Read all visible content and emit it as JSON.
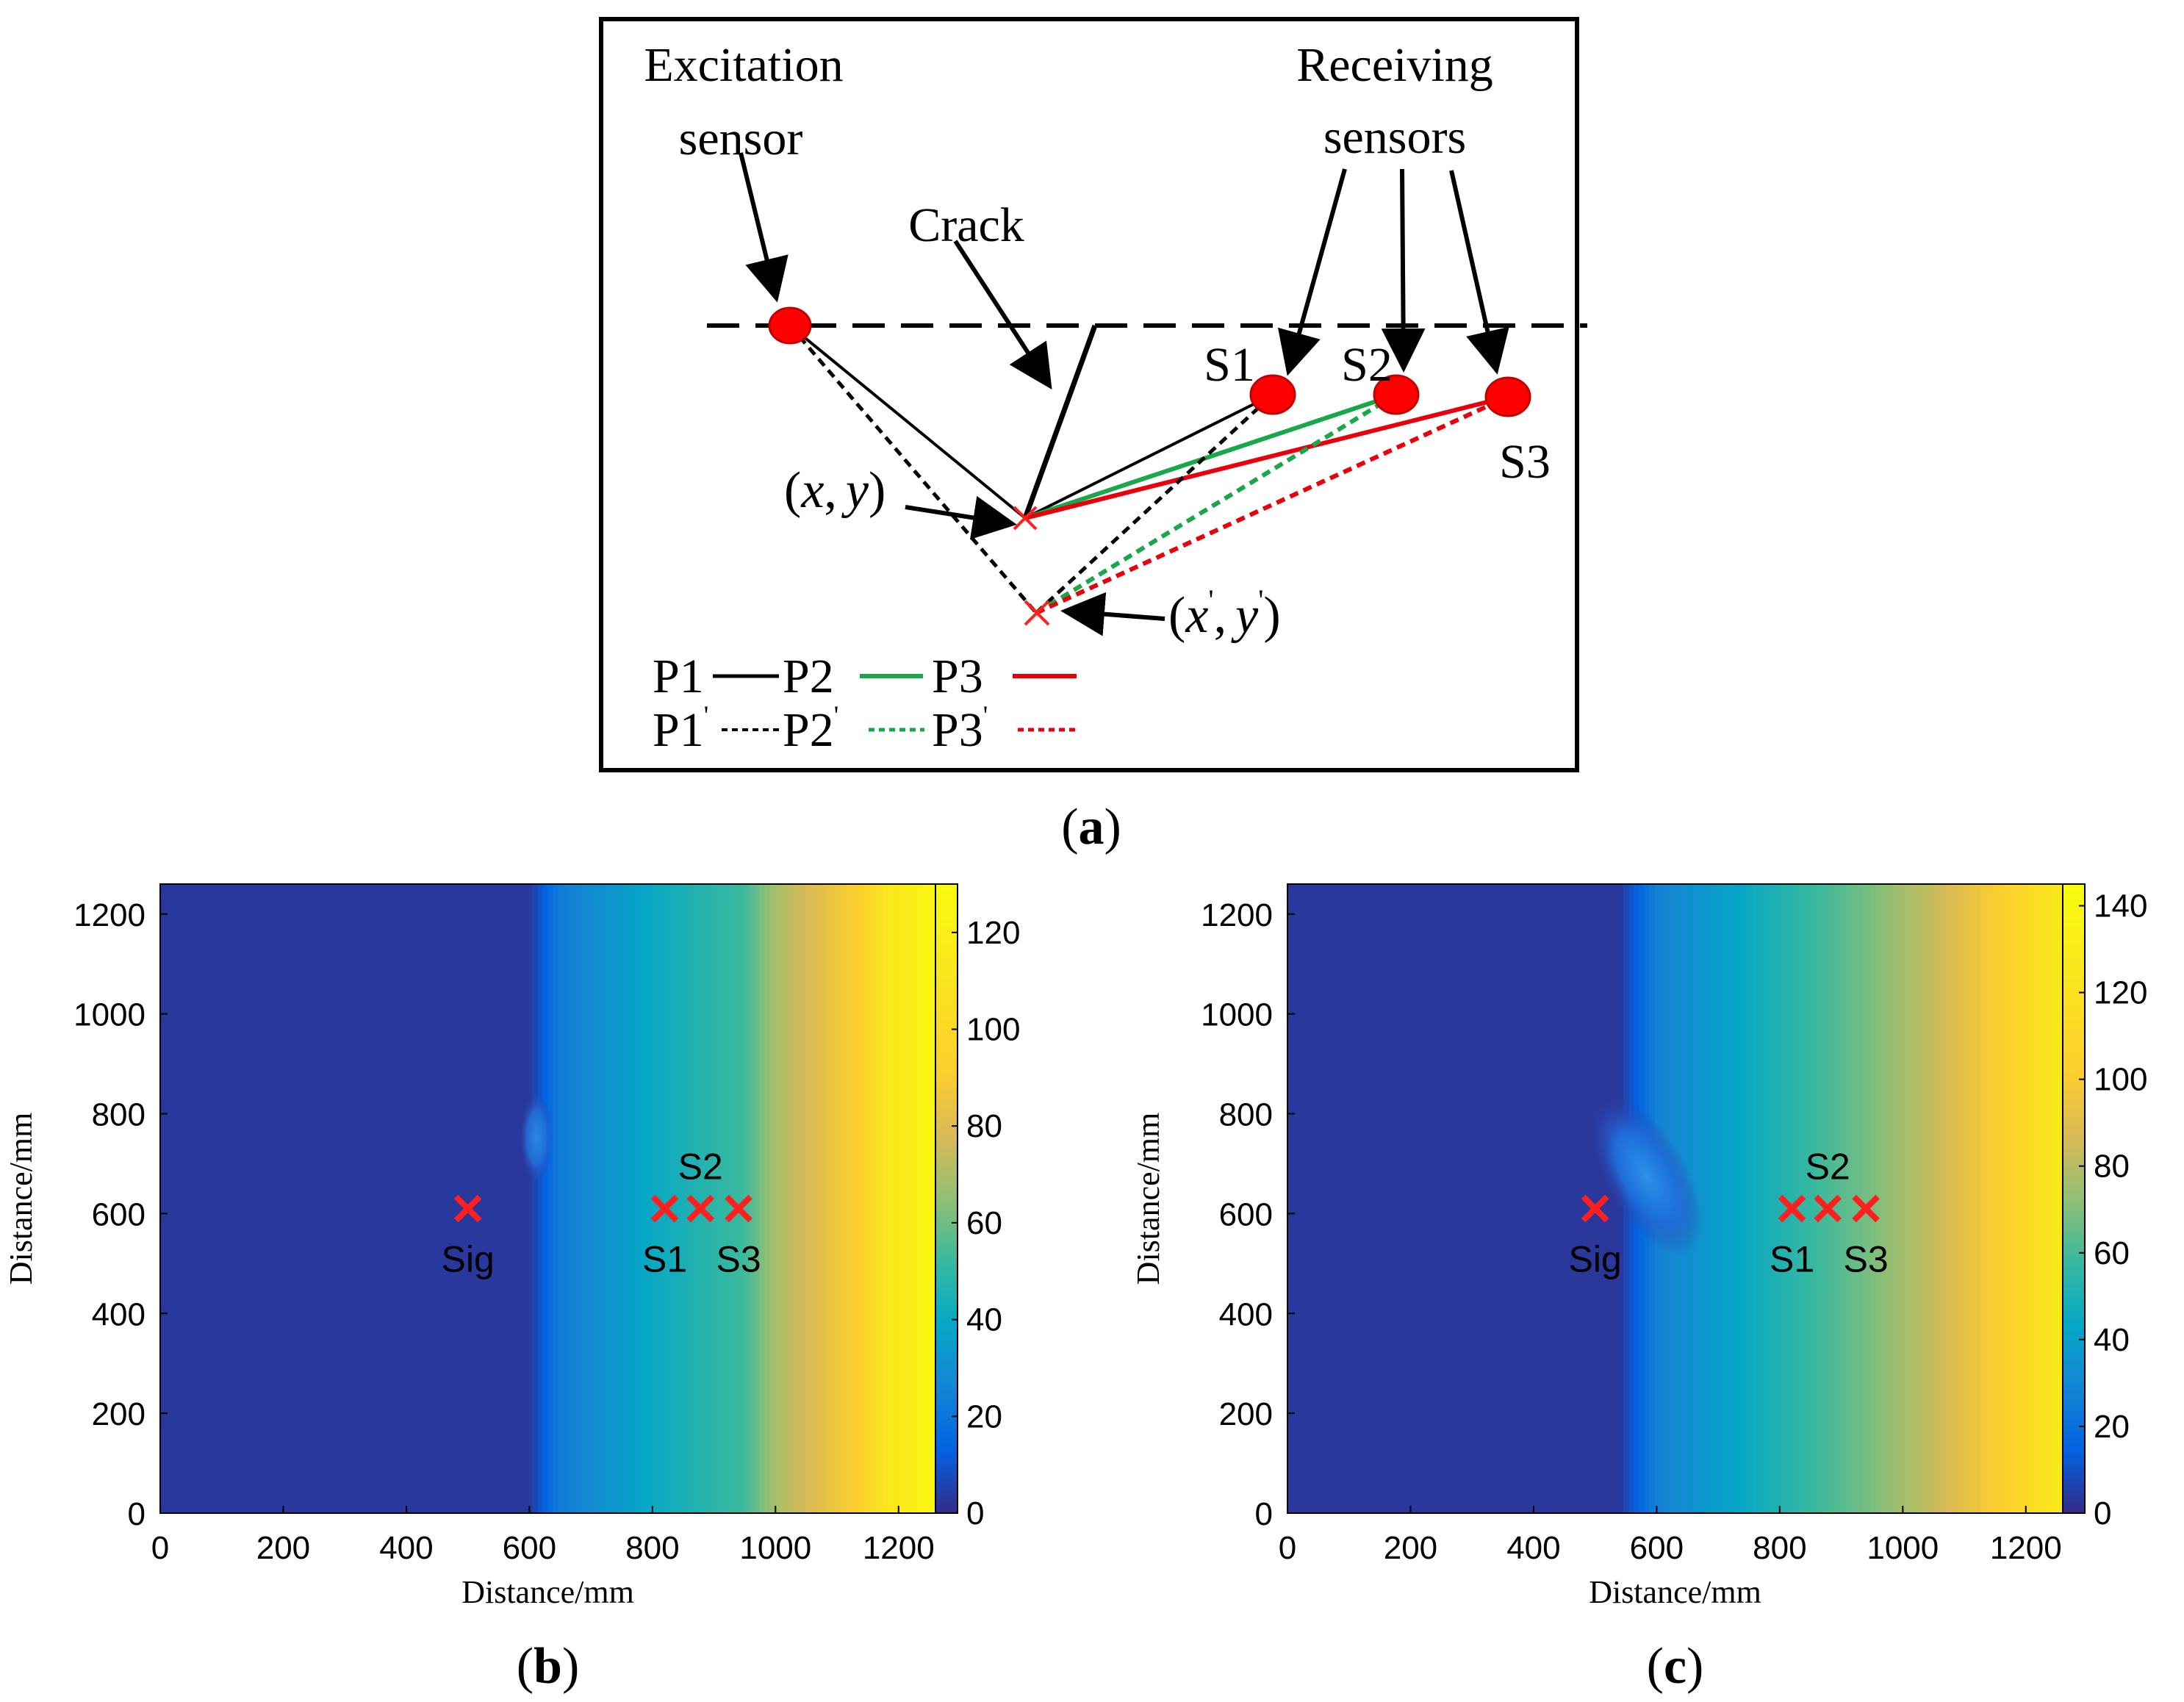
{
  "colors": {
    "red": "#e8000b",
    "green": "#1aa64a",
    "black": "#000000",
    "cross": "#ff1f1f"
  },
  "panel_a": {
    "caption": {
      "open": "(",
      "letter": "a",
      "close": ")"
    },
    "excitation_label": [
      "Excitation",
      "sensor"
    ],
    "receiving_label": [
      "Receiving",
      "sensors"
    ],
    "crack_label": "Crack",
    "sensors": [
      "S1",
      "S2",
      "S3"
    ],
    "point_label": {
      "open": "(",
      "x": "x",
      "comma": ",",
      "y": "y",
      "close": ")"
    },
    "point_prime_label": {
      "open": "(",
      "x": "x",
      "comma": ",",
      "y": "y",
      "prime": "'",
      "close": ")"
    },
    "legend_solid": [
      "P1",
      "P2",
      "P3"
    ],
    "legend_dashed": [
      "P1",
      "P2",
      "P3"
    ],
    "prime": "'"
  },
  "chart_data": [
    {
      "type": "heatmap",
      "caption": {
        "open": "(",
        "letter": "b",
        "close": ")"
      },
      "xlabel": "Distance/mm",
      "ylabel": "Distance/mm",
      "xlim": [
        0,
        1260
      ],
      "ylim": [
        0,
        1260
      ],
      "xticks": [
        0,
        200,
        400,
        600,
        800,
        1000,
        1200
      ],
      "yticks": [
        0,
        200,
        400,
        600,
        800,
        1000,
        1200
      ],
      "colorbar": {
        "min": 0,
        "max": 130,
        "ticks": [
          "0",
          "20",
          "40",
          "60",
          "80",
          "100",
          "120"
        ],
        "tick_values": [
          0,
          20,
          40,
          60,
          80,
          100,
          120
        ]
      },
      "field": {
        "flat_until": 600,
        "stops": [
          [
            0,
            4
          ],
          [
            600,
            4
          ],
          [
            650,
            28
          ],
          [
            800,
            50
          ],
          [
            950,
            66
          ],
          [
            1000,
            86
          ],
          [
            1100,
            108
          ],
          [
            1180,
            122
          ],
          [
            1260,
            128
          ]
        ]
      },
      "markers": [
        {
          "label": "Sig",
          "x": 500,
          "y": 610
        },
        {
          "label": "S1",
          "x": 820,
          "y": 610
        },
        {
          "label": "S2",
          "x": 878,
          "y": 610
        },
        {
          "label": "S3",
          "x": 940,
          "y": 610
        }
      ]
    },
    {
      "type": "heatmap",
      "caption": {
        "open": "(",
        "letter": "c",
        "close": ")"
      },
      "xlabel": "Distance/mm",
      "ylabel": "Distance/mm",
      "xlim": [
        0,
        1260
      ],
      "ylim": [
        0,
        1260
      ],
      "xticks": [
        0,
        200,
        400,
        600,
        800,
        1000,
        1200
      ],
      "yticks": [
        0,
        200,
        400,
        600,
        800,
        1000,
        1200
      ],
      "colorbar": {
        "min": 0,
        "max": 145,
        "ticks": [
          "0",
          "20",
          "40",
          "60",
          "80",
          "100",
          "120",
          "140"
        ],
        "tick_values": [
          0,
          20,
          40,
          60,
          80,
          100,
          120,
          140
        ]
      },
      "field": {
        "flat_until": 540,
        "stops": [
          [
            0,
            4
          ],
          [
            540,
            4
          ],
          [
            600,
            34
          ],
          [
            800,
            64
          ],
          [
            950,
            86
          ],
          [
            1050,
            104
          ],
          [
            1150,
            126
          ],
          [
            1260,
            138
          ]
        ]
      },
      "markers": [
        {
          "label": "Sig",
          "x": 500,
          "y": 610
        },
        {
          "label": "S1",
          "x": 820,
          "y": 610
        },
        {
          "label": "S2",
          "x": 878,
          "y": 610
        },
        {
          "label": "S3",
          "x": 940,
          "y": 610
        }
      ]
    }
  ]
}
